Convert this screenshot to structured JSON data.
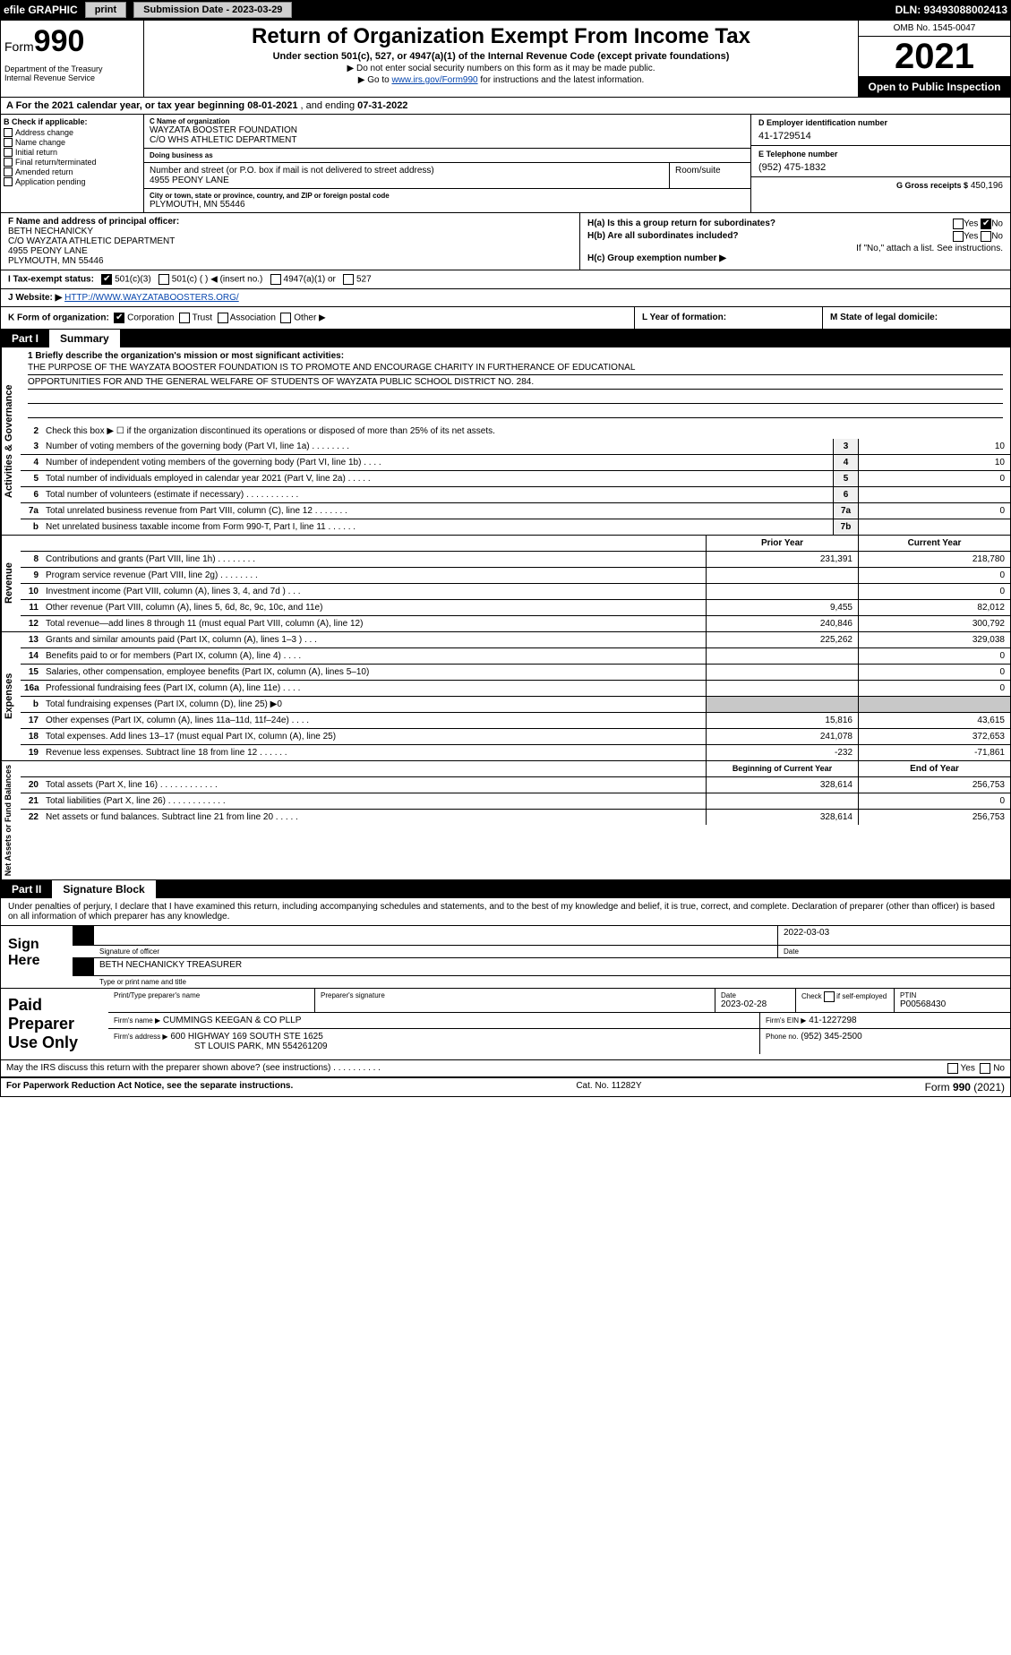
{
  "topbar": {
    "efile": "efile GRAPHIC",
    "print": "print",
    "subdate_label": "Submission Date - 2023-03-29",
    "dln": "DLN: 93493088002413"
  },
  "header": {
    "form_prefix": "Form",
    "form_number": "990",
    "title": "Return of Organization Exempt From Income Tax",
    "subtitle": "Under section 501(c), 527, or 4947(a)(1) of the Internal Revenue Code (except private foundations)",
    "note1": "▶ Do not enter social security numbers on this form as it may be made public.",
    "note2_pre": "▶ Go to ",
    "note2_link": "www.irs.gov/Form990",
    "note2_post": " for instructions and the latest information.",
    "dept": "Department of the Treasury\nInternal Revenue Service",
    "omb": "OMB No. 1545-0047",
    "year": "2021",
    "open": "Open to Public Inspection"
  },
  "row_a": {
    "label_pre": "A For the 2021 calendar year, or tax year beginning ",
    "begin": "08-01-2021",
    "mid": "    , and ending ",
    "end": "07-31-2022"
  },
  "block_b": {
    "label": "B Check if applicable:",
    "opts": [
      "Address change",
      "Name change",
      "Initial return",
      "Final return/terminated",
      "Amended return",
      "Application pending"
    ]
  },
  "block_c": {
    "name_label": "C Name of organization",
    "name1": "WAYZATA BOOSTER FOUNDATION",
    "name2": "C/O WHS ATHLETIC DEPARTMENT",
    "dba_label": "Doing business as",
    "dba": "",
    "street_label": "Number and street (or P.O. box if mail is not delivered to street address)",
    "street": "4955 PEONY LANE",
    "room_label": "Room/suite",
    "city_label": "City or town, state or province, country, and ZIP or foreign postal code",
    "city": "PLYMOUTH, MN  55446"
  },
  "block_d": {
    "label": "D Employer identification number",
    "val": "41-1729514"
  },
  "block_e": {
    "label": "E Telephone number",
    "val": "(952) 475-1832"
  },
  "block_g": {
    "label": "G Gross receipts $",
    "val": "450,196"
  },
  "block_f": {
    "label": "F  Name and address of principal officer:",
    "name": "BETH NECHANICKY",
    "l2": "C/O WAYZATA ATHLETIC DEPARTMENT",
    "l3": "4955 PEONY LANE",
    "l4": "PLYMOUTH, MN  55446"
  },
  "block_h": {
    "ha": "H(a)  Is this a group return for subordinates?",
    "ha_yes": "Yes",
    "ha_no": "No",
    "hb": "H(b)  Are all subordinates included?",
    "hb_yes": "Yes",
    "hb_no": "No",
    "hb_note": "If \"No,\" attach a list. See instructions.",
    "hc": "H(c)  Group exemption number ▶"
  },
  "row_i": {
    "label": "I   Tax-exempt status:",
    "o1": "501(c)(3)",
    "o2": "501(c) (   ) ◀ (insert no.)",
    "o3": "4947(a)(1) or",
    "o4": "527"
  },
  "row_j": {
    "label": "J   Website: ▶ ",
    "val": "HTTP://WWW.WAYZATABOOSTERS.ORG/"
  },
  "row_k": {
    "label": "K Form of organization:",
    "o1": "Corporation",
    "o2": "Trust",
    "o3": "Association",
    "o4": "Other ▶",
    "l_label": "L Year of formation:",
    "l_val": "",
    "m_label": "M State of legal domicile:",
    "m_val": ""
  },
  "part1": {
    "num": "Part I",
    "title": "Summary"
  },
  "vtabs": {
    "ag": "Activities & Governance",
    "rev": "Revenue",
    "exp": "Expenses",
    "na": "Net Assets or Fund Balances"
  },
  "mission": {
    "q": "1   Briefly describe the organization's mission or most significant activities:",
    "l1": "THE PURPOSE OF THE WAYZATA BOOSTER FOUNDATION IS TO PROMOTE AND ENCOURAGE CHARITY IN FURTHERANCE OF EDUCATIONAL",
    "l2": "OPPORTUNITIES FOR AND THE GENERAL WELFARE OF STUDENTS OF WAYZATA PUBLIC SCHOOL DISTRICT NO. 284."
  },
  "ag_rows": [
    {
      "n": "2",
      "t": "Check this box ▶ ☐  if the organization discontinued its operations or disposed of more than 25% of its net assets.",
      "box": "",
      "v": ""
    },
    {
      "n": "3",
      "t": "Number of voting members of the governing body (Part VI, line 1a)   .    .    .    .    .    .    .    .",
      "box": "3",
      "v": "10"
    },
    {
      "n": "4",
      "t": "Number of independent voting members of the governing body (Part VI, line 1b)   .    .    .    .",
      "box": "4",
      "v": "10"
    },
    {
      "n": "5",
      "t": "Total number of individuals employed in calendar year 2021 (Part V, line 2a)   .    .    .    .    .",
      "box": "5",
      "v": "0"
    },
    {
      "n": "6",
      "t": "Total number of volunteers (estimate if necessary)    .    .    .    .    .    .    .    .    .    .    .",
      "box": "6",
      "v": ""
    },
    {
      "n": "7a",
      "t": "Total unrelated business revenue from Part VIII, column (C), line 12   .    .    .    .    .    .    .",
      "box": "7a",
      "v": "0"
    },
    {
      "n": "b",
      "t": "Net unrelated business taxable income from Form 990-T, Part I, line 11   .    .    .    .    .    .",
      "box": "7b",
      "v": ""
    }
  ],
  "rev_hdr": {
    "py": "Prior Year",
    "cy": "Current Year"
  },
  "rev_rows": [
    {
      "n": "8",
      "t": "Contributions and grants (Part VIII, line 1h)   .    .    .    .    .    .    .    .",
      "py": "231,391",
      "cy": "218,780"
    },
    {
      "n": "9",
      "t": "Program service revenue (Part VIII, line 2g)   .    .    .    .    .    .    .    .",
      "py": "",
      "cy": "0"
    },
    {
      "n": "10",
      "t": "Investment income (Part VIII, column (A), lines 3, 4, and 7d )   .    .    .",
      "py": "",
      "cy": "0"
    },
    {
      "n": "11",
      "t": "Other revenue (Part VIII, column (A), lines 5, 6d, 8c, 9c, 10c, and 11e)",
      "py": "9,455",
      "cy": "82,012"
    },
    {
      "n": "12",
      "t": "Total revenue—add lines 8 through 11 (must equal Part VIII, column (A), line 12)",
      "py": "240,846",
      "cy": "300,792"
    }
  ],
  "exp_rows": [
    {
      "n": "13",
      "t": "Grants and similar amounts paid (Part IX, column (A), lines 1–3 )   .    .    .",
      "py": "225,262",
      "cy": "329,038"
    },
    {
      "n": "14",
      "t": "Benefits paid to or for members (Part IX, column (A), line 4)   .    .    .    .",
      "py": "",
      "cy": "0"
    },
    {
      "n": "15",
      "t": "Salaries, other compensation, employee benefits (Part IX, column (A), lines 5–10)",
      "py": "",
      "cy": "0"
    },
    {
      "n": "16a",
      "t": "Professional fundraising fees (Part IX, column (A), line 11e)   .    .    .    .",
      "py": "",
      "cy": "0"
    },
    {
      "n": "b",
      "t": "Total fundraising expenses (Part IX, column (D), line 25) ▶0",
      "py": "shade",
      "cy": "shade"
    },
    {
      "n": "17",
      "t": "Other expenses (Part IX, column (A), lines 11a–11d, 11f–24e)   .    .    .    .",
      "py": "15,816",
      "cy": "43,615"
    },
    {
      "n": "18",
      "t": "Total expenses. Add lines 13–17 (must equal Part IX, column (A), line 25)",
      "py": "241,078",
      "cy": "372,653"
    },
    {
      "n": "19",
      "t": "Revenue less expenses. Subtract line 18 from line 12   .    .    .    .    .    .",
      "py": "-232",
      "cy": "-71,861"
    }
  ],
  "na_hdr": {
    "py": "Beginning of Current Year",
    "cy": "End of Year"
  },
  "na_rows": [
    {
      "n": "20",
      "t": "Total assets (Part X, line 16)   .    .    .    .    .    .    .    .    .    .    .    .",
      "py": "328,614",
      "cy": "256,753"
    },
    {
      "n": "21",
      "t": "Total liabilities (Part X, line 26)   .    .    .    .    .    .    .    .    .    .    .    .",
      "py": "",
      "cy": "0"
    },
    {
      "n": "22",
      "t": "Net assets or fund balances. Subtract line 21 from line 20   .    .    .    .    .",
      "py": "328,614",
      "cy": "256,753"
    }
  ],
  "part2": {
    "num": "Part II",
    "title": "Signature Block"
  },
  "sig_intro": "Under penalties of perjury, I declare that I have examined this return, including accompanying schedules and statements, and to the best of my knowledge and belief, it is true, correct, and complete. Declaration of preparer (other than officer) is based on all information of which preparer has any knowledge.",
  "sign": {
    "label": "Sign Here",
    "sig_label": "Signature of officer",
    "date_label": "Date",
    "date_val": "2022-03-03",
    "name": "BETH NECHANICKY  TREASURER",
    "name_label": "Type or print name and title"
  },
  "paid": {
    "label": "Paid Preparer Use Only",
    "h1": "Print/Type preparer's name",
    "h2": "Preparer's signature",
    "h3": "Date",
    "date": "2023-02-28",
    "h4_pre": "Check",
    "h4_post": "if self-employed",
    "h5": "PTIN",
    "ptin": "P00568430",
    "firm_label": "Firm's name      ▶",
    "firm": "CUMMINGS KEEGAN & CO PLLP",
    "ein_label": "Firm's EIN ▶",
    "ein": "41-1227298",
    "addr_label": "Firm's address ▶",
    "addr1": "600 HIGHWAY 169 SOUTH STE 1625",
    "addr2": "ST LOUIS PARK, MN  554261209",
    "phone_label": "Phone no.",
    "phone": "(952) 345-2500"
  },
  "may_irs": "May the IRS discuss this return with the preparer shown above? (see instructions)   .    .    .    .    .    .    .    .    .    .",
  "may_yes": "Yes",
  "may_no": "No",
  "footer": {
    "l": "For Paperwork Reduction Act Notice, see the separate instructions.",
    "m": "Cat. No. 11282Y",
    "r_pre": "Form ",
    "r_num": "990",
    "r_post": " (2021)"
  }
}
